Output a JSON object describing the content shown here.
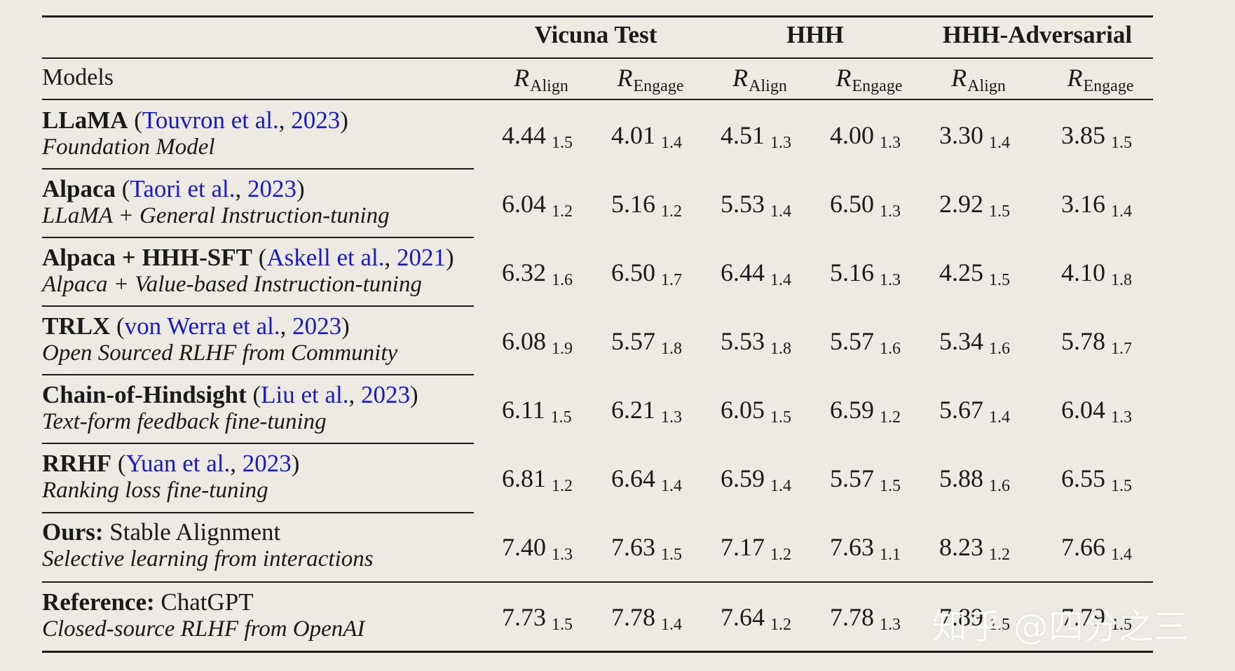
{
  "groups": [
    "Vicuna Test",
    "HHH",
    "HHH-Adversarial"
  ],
  "models_header": "Models",
  "metric_symbol": "R",
  "metric_subs": [
    "Align",
    "Engage",
    "Align",
    "Engage",
    "Align",
    "Engage"
  ],
  "rows": [
    {
      "name": "LLaMA",
      "cite_open": " (",
      "cite_text": "Touvron et al.",
      "cite_sep": ", ",
      "cite_year": "2023",
      "cite_close": ")",
      "desc_plain": "",
      "desc": "Foundation Model",
      "values": [
        [
          "4.44",
          "1.5"
        ],
        [
          "4.01",
          "1.4"
        ],
        [
          "4.51",
          "1.3"
        ],
        [
          "4.00",
          "1.3"
        ],
        [
          "3.30",
          "1.4"
        ],
        [
          "3.85",
          "1.5"
        ]
      ]
    },
    {
      "name": "Alpaca",
      "cite_open": " (",
      "cite_text": "Taori et al.",
      "cite_sep": ", ",
      "cite_year": "2023",
      "cite_close": ")",
      "desc_plain": "",
      "desc": "LLaMA + General Instruction-tuning",
      "values": [
        [
          "6.04",
          "1.2"
        ],
        [
          "5.16",
          "1.2"
        ],
        [
          "5.53",
          "1.4"
        ],
        [
          "6.50",
          "1.3"
        ],
        [
          "2.92",
          "1.5"
        ],
        [
          "3.16",
          "1.4"
        ]
      ]
    },
    {
      "name": "Alpaca + HHH-SFT",
      "cite_open": " (",
      "cite_text": "Askell et al.",
      "cite_sep": ", ",
      "cite_year": "2021",
      "cite_close": ")",
      "desc_plain": "",
      "desc": "Alpaca + Value-based Instruction-tuning",
      "values": [
        [
          "6.32",
          "1.6"
        ],
        [
          "6.50",
          "1.7"
        ],
        [
          "6.44",
          "1.4"
        ],
        [
          "5.16",
          "1.3"
        ],
        [
          "4.25",
          "1.5"
        ],
        [
          "4.10",
          "1.8"
        ]
      ]
    },
    {
      "name": "TRLX",
      "cite_open": " (",
      "cite_text": "von Werra et al.",
      "cite_sep": ", ",
      "cite_year": "2023",
      "cite_close": ")",
      "desc_plain": "",
      "desc": "Open Sourced RLHF from Community",
      "values": [
        [
          "6.08",
          "1.9"
        ],
        [
          "5.57",
          "1.8"
        ],
        [
          "5.53",
          "1.8"
        ],
        [
          "5.57",
          "1.6"
        ],
        [
          "5.34",
          "1.6"
        ],
        [
          "5.78",
          "1.7"
        ]
      ]
    },
    {
      "name": "Chain-of-Hindsight",
      "cite_open": " (",
      "cite_text": "Liu et al.",
      "cite_sep": ", ",
      "cite_year": "2023",
      "cite_close": ")",
      "desc_plain": "",
      "desc": "Text-form feedback fine-tuning",
      "values": [
        [
          "6.11",
          "1.5"
        ],
        [
          "6.21",
          "1.3"
        ],
        [
          "6.05",
          "1.5"
        ],
        [
          "6.59",
          "1.2"
        ],
        [
          "5.67",
          "1.4"
        ],
        [
          "6.04",
          "1.3"
        ]
      ]
    },
    {
      "name": "RRHF",
      "cite_open": " (",
      "cite_text": "Yuan et al.",
      "cite_sep": ", ",
      "cite_year": "2023",
      "cite_close": ")",
      "desc_plain": "",
      "desc": "Ranking loss fine-tuning",
      "values": [
        [
          "6.81",
          "1.2"
        ],
        [
          "6.64",
          "1.4"
        ],
        [
          "6.59",
          "1.4"
        ],
        [
          "5.57",
          "1.5"
        ],
        [
          "5.88",
          "1.6"
        ],
        [
          "6.55",
          "1.5"
        ]
      ]
    },
    {
      "name": "Ours:",
      "cite_open": "",
      "cite_text": "",
      "cite_sep": "",
      "cite_year": "",
      "cite_close": "",
      "desc_plain": " Stable Alignment",
      "desc": "Selective learning from interactions",
      "values": [
        [
          "7.40",
          "1.3"
        ],
        [
          "7.63",
          "1.5"
        ],
        [
          "7.17",
          "1.2"
        ],
        [
          "7.63",
          "1.1"
        ],
        [
          "8.23",
          "1.2"
        ],
        [
          "7.66",
          "1.4"
        ]
      ]
    },
    {
      "name": "Reference:",
      "cite_open": "",
      "cite_text": "",
      "cite_sep": "",
      "cite_year": "",
      "cite_close": "",
      "desc_plain": " ChatGPT",
      "desc": "Closed-source RLHF from OpenAI",
      "values": [
        [
          "7.73",
          "1.5"
        ],
        [
          "7.78",
          "1.4"
        ],
        [
          "7.64",
          "1.2"
        ],
        [
          "7.78",
          "1.3"
        ],
        [
          "7.89",
          "1.5"
        ],
        [
          "7.79",
          "1.5"
        ]
      ]
    }
  ],
  "watermark": "知乎 @四分之三"
}
